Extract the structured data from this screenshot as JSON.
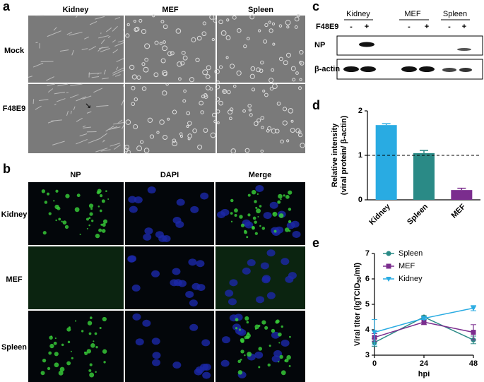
{
  "panel_a": {
    "label": "a",
    "columns": [
      "Kidney",
      "MEF",
      "Spleen"
    ],
    "rows": [
      "Mock",
      "F48E9"
    ]
  },
  "panel_b": {
    "label": "b",
    "columns": [
      "NP",
      "DAPI",
      "Merge"
    ],
    "rows": [
      "Kidney",
      "MEF",
      "Spleen"
    ]
  },
  "panel_c": {
    "label": "c",
    "groups": [
      "Kidney",
      "MEF",
      "Spleen"
    ],
    "treatment": "F48E9",
    "lanes": [
      "-",
      "+",
      "-",
      "+",
      "-",
      "+"
    ],
    "blots": [
      "NP",
      "β-actin"
    ]
  },
  "chart_data": [
    {
      "type": "bar",
      "label": "d",
      "y_label": [
        "Relative intensity",
        "(viral protein/ β-actin)"
      ],
      "categories": [
        "Kidney",
        "Spleen",
        "MEF"
      ],
      "values": [
        1.68,
        1.05,
        0.22
      ],
      "errors": [
        0.03,
        0.06,
        0.04
      ],
      "colors": [
        "#29abe2",
        "#2a8a86",
        "#7b2d8e"
      ],
      "ylim": [
        0,
        2
      ],
      "yticks": [
        0,
        1,
        2
      ],
      "reference_line": 1
    },
    {
      "type": "line",
      "label": "e",
      "x_label": "hpi",
      "y_label": [
        "Viral titer (lgTCID",
        "50",
        "/ml)"
      ],
      "x": [
        0,
        24,
        48
      ],
      "xlim": [
        0,
        48
      ],
      "xticks": [
        0,
        24,
        48
      ],
      "ylim": [
        3,
        7
      ],
      "yticks": [
        3,
        4,
        5,
        6,
        7
      ],
      "legend": "top-left",
      "series": [
        {
          "name": "Spleen",
          "color": "#2a8a86",
          "marker": "circle",
          "values": [
            3.5,
            4.5,
            3.6
          ],
          "errors": [
            0.15,
            0.05,
            0.15
          ]
        },
        {
          "name": "MEF",
          "color": "#7b2d8e",
          "marker": "square",
          "values": [
            3.7,
            4.3,
            3.9
          ],
          "errors": [
            0.15,
            0.1,
            0.3
          ]
        },
        {
          "name": "Kidney",
          "color": "#29abe2",
          "marker": "triangle",
          "values": [
            3.9,
            4.45,
            4.85
          ],
          "errors": [
            0.5,
            0.05,
            0.1
          ]
        }
      ]
    }
  ]
}
